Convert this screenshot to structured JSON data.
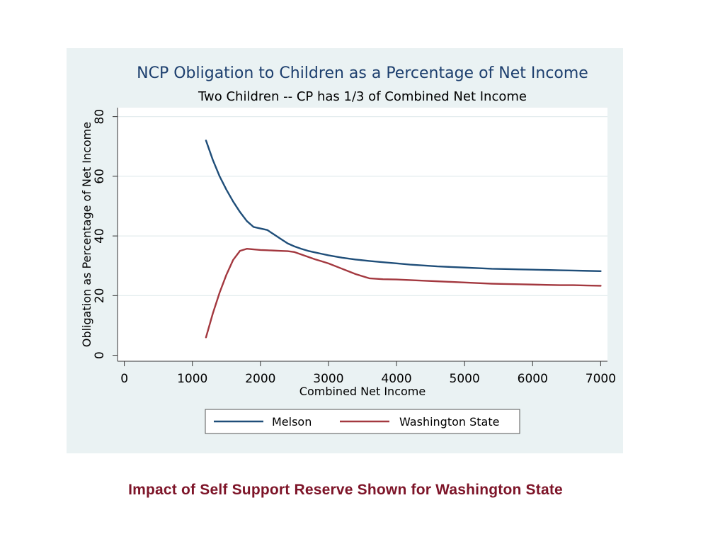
{
  "caption": "Impact of Self Support Reserve Shown for Washington State",
  "colors": {
    "panel_bg": "#eaf2f3",
    "plot_bg": "#ffffff",
    "title": "#1d3f6e",
    "caption": "#7d1428",
    "melson": "#1f4e79",
    "washington": "#a3383f"
  },
  "chart_data": {
    "type": "line",
    "title": "NCP Obligation to Children as a Percentage of Net Income",
    "subtitle": "Two Children -- CP has 1/3 of Combined Net Income",
    "xlabel": "Combined Net Income",
    "ylabel": "Obligation as Percentage of Net Income",
    "xlim": [
      -100,
      7100
    ],
    "ylim": [
      -2,
      83
    ],
    "xticks": [
      0,
      1000,
      2000,
      3000,
      4000,
      5000,
      6000,
      7000
    ],
    "yticks": [
      0,
      20,
      40,
      60,
      80
    ],
    "grid": true,
    "legend_position": "bottom",
    "series": [
      {
        "name": "Melson",
        "color": "#1f4e79",
        "x": [
          1200,
          1300,
          1400,
          1500,
          1600,
          1700,
          1800,
          1900,
          2000,
          2100,
          2200,
          2300,
          2400,
          2500,
          2600,
          2700,
          2800,
          2900,
          3000,
          3200,
          3400,
          3600,
          3800,
          4000,
          4200,
          4400,
          4600,
          4800,
          5000,
          5200,
          5400,
          5600,
          5800,
          6000,
          6200,
          6400,
          6600,
          6800,
          7000
        ],
        "y": [
          72,
          65.5,
          60,
          55.5,
          51.5,
          48,
          45,
          43,
          42.5,
          42,
          40.5,
          39,
          37.5,
          36.5,
          35.7,
          35,
          34.5,
          34,
          33.5,
          32.7,
          32.1,
          31.6,
          31.2,
          30.8,
          30.4,
          30.1,
          29.8,
          29.6,
          29.4,
          29.2,
          29.0,
          28.9,
          28.8,
          28.7,
          28.6,
          28.5,
          28.4,
          28.3,
          28.2
        ]
      },
      {
        "name": "Washington State",
        "color": "#a3383f",
        "x": [
          1200,
          1300,
          1400,
          1500,
          1600,
          1700,
          1800,
          1900,
          2000,
          2100,
          2200,
          2300,
          2400,
          2500,
          2600,
          2700,
          2800,
          2900,
          3000,
          3200,
          3400,
          3600,
          3800,
          4000,
          4200,
          4400,
          4600,
          4800,
          5000,
          5200,
          5400,
          5600,
          5800,
          6000,
          6200,
          6400,
          6600,
          6800,
          7000
        ],
        "y": [
          6,
          14,
          21,
          27,
          32,
          35,
          35.7,
          35.5,
          35.3,
          35.2,
          35.1,
          35.0,
          34.9,
          34.6,
          33.8,
          33.0,
          32.2,
          31.5,
          30.8,
          29.0,
          27.2,
          25.8,
          25.5,
          25.4,
          25.2,
          25.0,
          24.8,
          24.6,
          24.4,
          24.2,
          24.0,
          23.9,
          23.8,
          23.7,
          23.6,
          23.5,
          23.5,
          23.4,
          23.3
        ]
      }
    ]
  }
}
